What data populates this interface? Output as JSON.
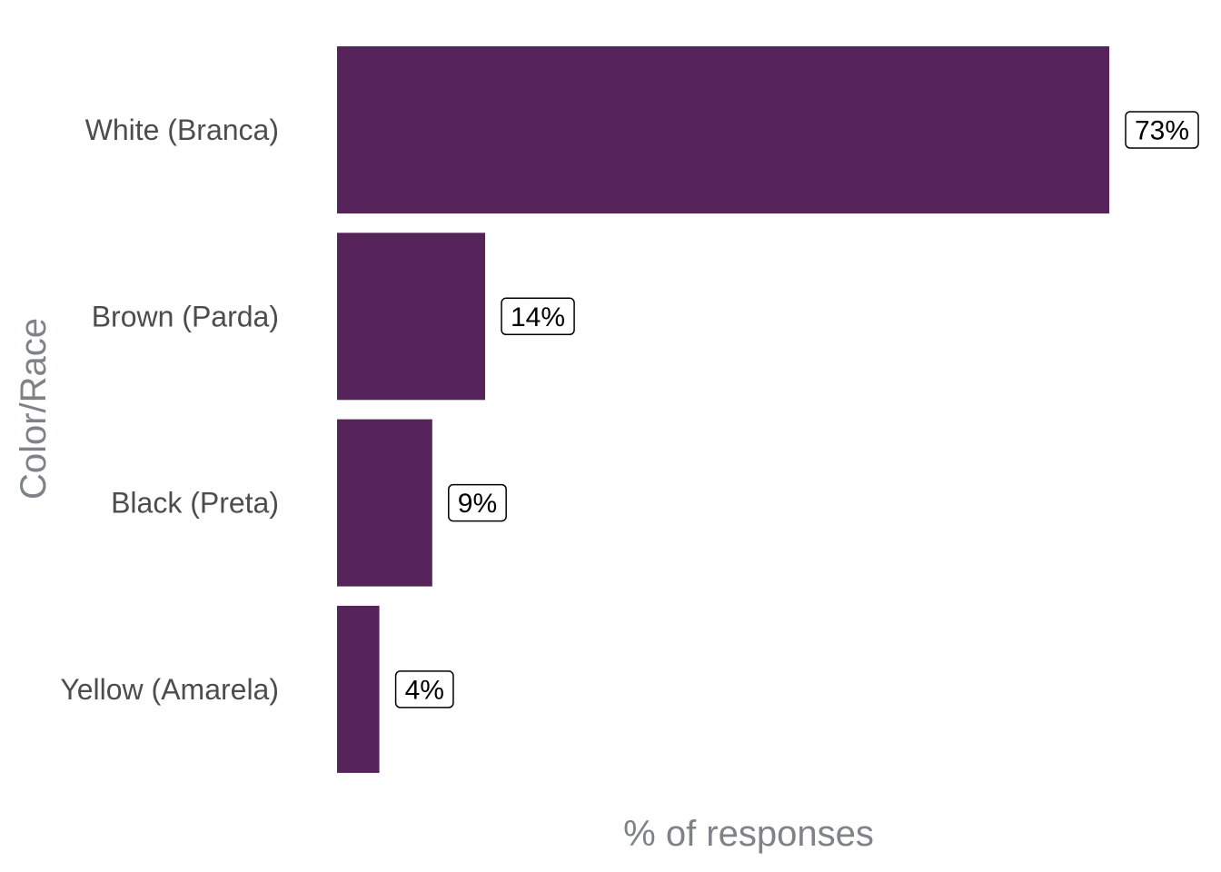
{
  "chart_data": {
    "type": "bar",
    "orientation": "horizontal",
    "categories": [
      "White (Branca)",
      "Brown (Parda)",
      "Black (Preta)",
      "Yellow (Amarela)"
    ],
    "values": [
      73,
      14,
      9,
      4
    ],
    "value_labels": [
      "73%",
      "14%",
      "9%",
      "4%"
    ],
    "xlabel": "% of responses",
    "ylabel": "Color/Race",
    "xlim": [
      0,
      73
    ],
    "grid": false,
    "legend": "none",
    "bar_color": "#56245a"
  }
}
